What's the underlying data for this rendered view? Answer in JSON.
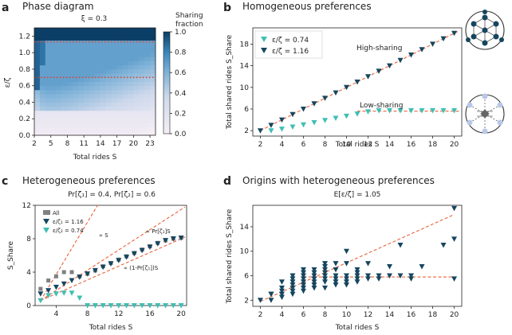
{
  "colors": {
    "dark_navy": "#16465f",
    "teal": "#3fbfb3",
    "red_dashed": "#e8633a",
    "red_dotted": "#e0452d",
    "grey_square": "#808080",
    "colormap_low": "#f6eef5",
    "colormap_high": "#0b3e66"
  },
  "panels": {
    "a": {
      "letter": "a",
      "title": "Phase diagram",
      "subtitle": "ξ = 0.3",
      "colorbar_title_1": "Sharing",
      "colorbar_title_2": "fraction"
    },
    "b": {
      "letter": "b",
      "title": "Homogeneous preferences",
      "annot_high": "High-sharing",
      "annot_low": "Low-sharing"
    },
    "c": {
      "letter": "c",
      "title": "Heterogeneous preferences",
      "subtitle": "Pr[ζ₁] = 0.4, Pr[ζ₂] = 0.6",
      "annot_s": "∝ S",
      "annot_pr": "∝ Pr[ζ₁]S",
      "annot_1m": "∝ (1-Pr[ζ₁])S"
    },
    "d": {
      "letter": "d",
      "title": "Origins with heterogeneous preferences",
      "subtitle": "E[ε/ζ] = 1.05"
    }
  },
  "chart_data": [
    {
      "id": "a",
      "type": "heatmap",
      "title": "Phase diagram",
      "subtitle": "ξ = 0.3",
      "xlabel": "Total rides S",
      "ylabel": "ε/ζ",
      "xlim": [
        2,
        24
      ],
      "ylim": [
        0,
        1.3
      ],
      "xticks": [
        "2",
        "5",
        "8",
        "11",
        "14",
        "17",
        "20",
        "23"
      ],
      "yticks": [
        "0.0",
        "0.2",
        "0.4",
        "0.6",
        "0.8",
        "1.0",
        "1.2"
      ],
      "colorbar": {
        "label": "Sharing fraction",
        "ticks": [
          "0.0",
          "0.2",
          "0.4",
          "0.6",
          "0.8",
          "1.0"
        ],
        "range": [
          0,
          1
        ]
      },
      "reference_lines_y": [
        1.13,
        0.7
      ],
      "description_values": {
        "x_cells": 22,
        "y_cells": 26,
        "high_region_y_above": 1.13
      }
    },
    {
      "id": "b",
      "type": "scatter",
      "title": "Homogeneous preferences",
      "xlabel": "Total rides S",
      "ylabel": "Total shared rides S_Share",
      "xlim": [
        1.3,
        20.7
      ],
      "ylim": [
        1,
        21
      ],
      "xticks": [
        "2",
        "4",
        "6",
        "8",
        "10",
        "12",
        "14",
        "16",
        "18",
        "20"
      ],
      "yticks": [
        "2",
        "6",
        "10",
        "14",
        "18"
      ],
      "legend": "top-left",
      "series": [
        {
          "name": "ε/ζ = 0.74",
          "marker": "triangle-down",
          "color": "#3fbfb3",
          "x": [
            3,
            4,
            5,
            6,
            7,
            8,
            9,
            10,
            11,
            12,
            13,
            14,
            15,
            16,
            17,
            18,
            19,
            20
          ],
          "y": [
            2,
            2.3,
            2.7,
            3.1,
            3.5,
            3.9,
            4.3,
            4.7,
            5.1,
            5.5,
            5.7,
            5.7,
            5.7,
            5.7,
            5.7,
            5.7,
            5.7,
            5.7
          ]
        },
        {
          "name": "ε/ζ = 1.16",
          "marker": "triangle-down",
          "color": "#16465f",
          "x": [
            2,
            3,
            4,
            5,
            6,
            7,
            8,
            9,
            10,
            11,
            12,
            13,
            14,
            15,
            16,
            17,
            18,
            19,
            20
          ],
          "y": [
            2,
            3,
            4,
            5,
            6,
            7,
            8,
            9,
            10,
            11,
            12,
            13,
            14,
            15,
            16,
            17,
            18,
            19,
            20
          ]
        }
      ],
      "fit_lines": [
        {
          "x": [
            2,
            20.5
          ],
          "y": [
            2,
            20.5
          ]
        },
        {
          "x": [
            11,
            20.5
          ],
          "y": [
            5.6,
            5.6
          ]
        }
      ]
    },
    {
      "id": "c",
      "type": "scatter",
      "title": "Heterogeneous preferences",
      "subtitle": "Pr[ζ₁] = 0.4, Pr[ζ₂] = 0.6",
      "xlabel": "Total rides S",
      "ylabel": "S_Share",
      "xlim": [
        1.3,
        20.7
      ],
      "ylim": [
        0,
        12
      ],
      "xticks": [
        "4",
        "8",
        "12",
        "16",
        "20"
      ],
      "yticks": [
        "0",
        "4",
        "8",
        "12"
      ],
      "legend": "top-left",
      "series": [
        {
          "name": "All",
          "marker": "square",
          "color": "#808080",
          "x": [
            2,
            3,
            4,
            5,
            6,
            7,
            8,
            9,
            10,
            11,
            12,
            13,
            14,
            15,
            16,
            17,
            18,
            19,
            20
          ],
          "y": [
            2,
            3,
            3.5,
            4,
            4,
            3.5,
            3.8,
            4.2,
            4.7,
            5.1,
            5.5,
            5.9,
            6.3,
            6.7,
            7.1,
            7.5,
            7.8,
            8.0,
            8.1
          ]
        },
        {
          "name": "ε/ζ₁ = 1.16",
          "marker": "triangle-down",
          "color": "#16465f",
          "x": [
            2,
            3,
            4,
            5,
            6,
            7,
            8,
            9,
            10,
            11,
            12,
            13,
            14,
            15,
            16,
            17,
            18,
            19,
            20
          ],
          "y": [
            1.4,
            1.8,
            2.2,
            2.6,
            3.0,
            3.4,
            3.8,
            4.2,
            4.6,
            5.0,
            5.4,
            5.8,
            6.2,
            6.6,
            7.0,
            7.4,
            7.8,
            8.0,
            8.1
          ]
        },
        {
          "name": "ε/ζ₂ = 0.74",
          "marker": "triangle-down",
          "color": "#3fbfb3",
          "x": [
            2,
            3,
            4,
            5,
            6,
            7,
            8,
            9,
            10,
            11,
            12,
            13,
            14,
            15,
            16,
            17,
            18,
            19,
            20
          ],
          "y": [
            0.6,
            1.2,
            1.4,
            1.5,
            1.5,
            0.9,
            0,
            0,
            0,
            0,
            0,
            0,
            0,
            0,
            0,
            0,
            0,
            0,
            0
          ]
        }
      ],
      "fit_lines": [
        {
          "label": "∝ S",
          "x": [
            2,
            9.3
          ],
          "y": [
            0.6,
            12
          ]
        },
        {
          "label": "∝ Pr[ζ₁]S",
          "x": [
            2,
            20.5
          ],
          "y": [
            0.6,
            11.8
          ]
        },
        {
          "label": "∝ (1-Pr[ζ₁])S",
          "x": [
            2,
            20.5
          ],
          "y": [
            0.6,
            8.2
          ]
        }
      ]
    },
    {
      "id": "d",
      "type": "scatter",
      "title": "Origins with heterogeneous preferences",
      "subtitle": "E[ε/ζ] = 1.05",
      "xlabel": "Total rides S",
      "ylabel": "Total shared rides S_Share",
      "xlim": [
        1.3,
        20.7
      ],
      "ylim": [
        1,
        17.5
      ],
      "xticks": [
        "2",
        "4",
        "6",
        "8",
        "10",
        "12",
        "14",
        "16",
        "18",
        "20"
      ],
      "yticks": [
        "2",
        "6",
        "10",
        "14"
      ],
      "series": [
        {
          "name": "",
          "marker": "triangle-down",
          "color": "#16465f",
          "x": [
            2,
            3,
            3,
            3,
            4,
            4,
            4,
            4,
            4,
            5,
            5,
            5,
            5,
            5,
            5,
            5,
            6,
            6,
            6,
            6,
            6,
            6,
            6,
            6,
            7,
            7,
            7,
            7,
            7,
            7,
            7,
            8,
            8,
            8,
            8,
            8,
            8,
            8,
            8,
            9,
            9,
            9,
            9,
            9,
            9,
            10,
            10,
            10,
            10,
            10,
            10,
            11,
            11,
            11,
            11,
            11,
            12,
            12,
            12,
            13,
            13,
            14,
            14,
            15,
            15,
            16,
            16,
            17,
            19,
            20,
            20,
            20
          ],
          "y": [
            2,
            2,
            3,
            3,
            2.5,
            3,
            3.5,
            4,
            5,
            3,
            3.5,
            4,
            4.5,
            5,
            5.5,
            6,
            3.5,
            4,
            4.5,
            5,
            5.5,
            6,
            6.5,
            7,
            4,
            4.5,
            5,
            5.5,
            6,
            6.5,
            7,
            4,
            5,
            5.5,
            6,
            6.5,
            7,
            7.5,
            8,
            4.5,
            5,
            5.5,
            6,
            7,
            8,
            4.5,
            5,
            5.5,
            6,
            8,
            10,
            5,
            5.5,
            6,
            6.5,
            7,
            5.5,
            6,
            8,
            5.5,
            6,
            6,
            7.5,
            6,
            11,
            5.5,
            6,
            7.5,
            11,
            5.5,
            12,
            17
          ]
        }
      ],
      "fit_lines": [
        {
          "x": [
            2,
            20
          ],
          "y": [
            1.8,
            16
          ]
        },
        {
          "x": [
            6,
            20
          ],
          "y": [
            5.8,
            5.8
          ]
        }
      ]
    }
  ]
}
